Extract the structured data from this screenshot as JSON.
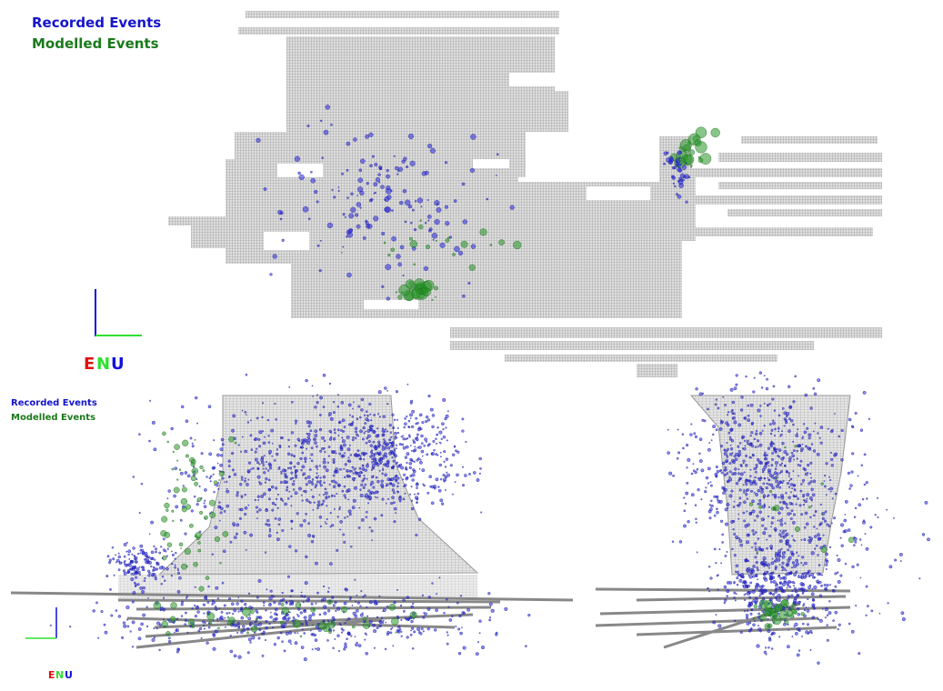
{
  "panels": [
    {
      "legend": [
        "Recorded Events",
        "Modelled Events"
      ],
      "axes": [
        "E",
        "N",
        "U"
      ]
    },
    {
      "legend": [
        "Recorded Events",
        "Modelled Events"
      ],
      "axes": [
        "E",
        "N",
        "U"
      ]
    }
  ]
}
